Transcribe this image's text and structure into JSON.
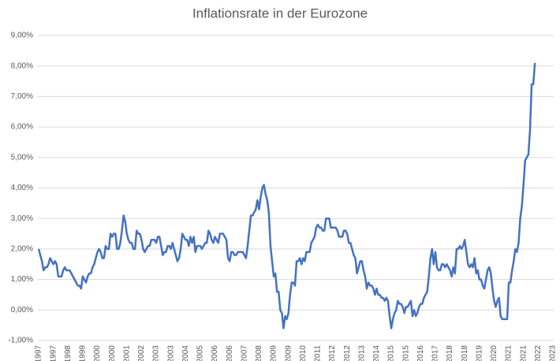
{
  "chart_data": {
    "type": "line",
    "title": "Inflationsrate in der Eurozone",
    "categories": [
      "01.1997",
      null,
      null,
      null,
      null,
      null,
      null,
      null,
      null,
      "10.1997",
      null,
      null,
      null,
      null,
      null,
      null,
      null,
      null,
      "07.1998",
      null,
      null,
      null,
      null,
      null,
      null,
      null,
      null,
      "04.1999",
      null,
      null,
      null,
      null,
      null,
      null,
      null,
      null,
      "01.2000",
      null,
      null,
      null,
      null,
      null,
      null,
      null,
      null,
      "10.2000",
      null,
      null,
      null,
      null,
      null,
      null,
      null,
      null,
      "07.2001",
      null,
      null,
      null,
      null,
      null,
      null,
      null,
      null,
      "04.2002",
      null,
      null,
      null,
      null,
      null,
      null,
      null,
      null,
      "01.2003",
      null,
      null,
      null,
      null,
      null,
      null,
      null,
      null,
      "10.2003",
      null,
      null,
      null,
      null,
      null,
      null,
      null,
      null,
      "07.2004",
      null,
      null,
      null,
      null,
      null,
      null,
      null,
      null,
      "04.2005",
      null,
      null,
      null,
      null,
      null,
      null,
      null,
      null,
      "01.2006",
      null,
      null,
      null,
      null,
      null,
      null,
      null,
      null,
      "10.2006",
      null,
      null,
      null,
      null,
      null,
      null,
      null,
      null,
      "07.2007",
      null,
      null,
      null,
      null,
      null,
      null,
      null,
      null,
      "04.2008",
      null,
      null,
      null,
      null,
      null,
      null,
      null,
      null,
      "01.2009",
      null,
      null,
      null,
      null,
      null,
      null,
      null,
      null,
      "10.2009",
      null,
      null,
      null,
      null,
      null,
      null,
      null,
      null,
      "07.2010",
      null,
      null,
      null,
      null,
      null,
      null,
      null,
      null,
      "04.2011",
      null,
      null,
      null,
      null,
      null,
      null,
      null,
      null,
      "01.2012",
      null,
      null,
      null,
      null,
      null,
      null,
      null,
      null,
      "10.2012",
      null,
      null,
      null,
      null,
      null,
      null,
      null,
      null,
      "07.2013",
      null,
      null,
      null,
      null,
      null,
      null,
      null,
      null,
      "04.2014",
      null,
      null,
      null,
      null,
      null,
      null,
      null,
      null,
      "01.2015",
      null,
      null,
      null,
      null,
      null,
      null,
      null,
      null,
      "10.2015",
      null,
      null,
      null,
      null,
      null,
      null,
      null,
      null,
      "07.2016",
      null,
      null,
      null,
      null,
      null,
      null,
      null,
      null,
      "04.2017",
      null,
      null,
      null,
      null,
      null,
      null,
      null,
      null,
      "01.2018",
      null,
      null,
      null,
      null,
      null,
      null,
      null,
      null,
      "10.2018",
      null,
      null,
      null,
      null,
      null,
      null,
      null,
      null,
      "07.2019",
      null,
      null,
      null,
      null,
      null,
      null,
      null,
      null,
      "04.2020",
      null,
      null,
      null,
      null,
      null,
      null,
      null,
      null,
      "01.2021",
      null,
      null,
      null,
      null,
      null,
      null,
      null,
      null,
      "10.2021",
      null,
      null,
      null,
      null,
      null,
      null,
      null,
      null,
      "07.2022",
      null,
      null,
      null,
      null,
      null,
      null,
      null,
      null,
      "04.2023"
    ],
    "series": [
      {
        "color": "#4472c4",
        "values": [
          2.0,
          1.8,
          1.6,
          1.3,
          1.4,
          1.4,
          1.5,
          1.7,
          1.6,
          1.5,
          1.6,
          1.5,
          1.1,
          1.1,
          1.1,
          1.3,
          1.4,
          1.3,
          1.3,
          1.3,
          1.2,
          1.1,
          1.0,
          0.9,
          0.8,
          0.8,
          0.7,
          1.1,
          1.0,
          0.9,
          1.1,
          1.2,
          1.2,
          1.4,
          1.5,
          1.7,
          1.9,
          2.0,
          1.9,
          1.7,
          1.7,
          2.1,
          2.0,
          2.0,
          2.5,
          2.4,
          2.5,
          2.5,
          2.0,
          2.0,
          2.2,
          2.6,
          3.1,
          2.9,
          2.5,
          2.3,
          2.2,
          2.2,
          2.0,
          2.0,
          2.6,
          2.5,
          2.5,
          2.3,
          2.0,
          1.9,
          2.0,
          2.1,
          2.1,
          2.3,
          2.3,
          2.3,
          2.2,
          2.4,
          2.4,
          2.1,
          1.8,
          1.9,
          1.9,
          2.1,
          2.1,
          2.0,
          2.2,
          2.0,
          1.8,
          1.6,
          1.7,
          2.0,
          2.5,
          2.4,
          2.3,
          2.3,
          2.1,
          2.4,
          2.2,
          2.4,
          1.9,
          2.1,
          2.1,
          2.1,
          2.0,
          2.1,
          2.2,
          2.2,
          2.6,
          2.5,
          2.3,
          2.2,
          2.4,
          2.3,
          2.2,
          2.5,
          2.5,
          2.5,
          2.4,
          2.3,
          1.7,
          1.6,
          1.9,
          1.9,
          1.8,
          1.8,
          1.9,
          1.9,
          1.9,
          1.9,
          1.8,
          1.7,
          2.1,
          2.6,
          3.1,
          3.1,
          3.2,
          3.3,
          3.6,
          3.3,
          3.7,
          4.0,
          4.1,
          3.8,
          3.6,
          3.2,
          2.1,
          1.6,
          1.1,
          1.2,
          0.6,
          0.6,
          0.0,
          -0.1,
          -0.6,
          -0.2,
          -0.3,
          -0.1,
          0.5,
          0.9,
          0.9,
          0.8,
          1.6,
          1.6,
          1.7,
          1.5,
          1.7,
          1.6,
          1.9,
          1.9,
          1.9,
          2.2,
          2.3,
          2.4,
          2.7,
          2.8,
          2.7,
          2.7,
          2.6,
          2.6,
          3.0,
          3.0,
          3.0,
          2.7,
          2.7,
          2.7,
          2.7,
          2.6,
          2.4,
          2.4,
          2.4,
          2.6,
          2.6,
          2.5,
          2.2,
          2.2,
          2.0,
          1.8,
          1.7,
          1.2,
          1.4,
          1.6,
          1.6,
          1.3,
          1.1,
          0.7,
          0.9,
          0.8,
          0.8,
          0.7,
          0.5,
          0.7,
          0.5,
          0.5,
          0.4,
          0.4,
          0.3,
          0.4,
          0.3,
          -0.2,
          -0.6,
          -0.3,
          -0.1,
          0.0,
          0.3,
          0.2,
          0.2,
          0.1,
          -0.1,
          0.1,
          0.1,
          0.2,
          0.3,
          -0.2,
          0.0,
          -0.2,
          -0.1,
          0.1,
          0.2,
          0.2,
          0.4,
          0.5,
          0.6,
          1.1,
          1.7,
          2.0,
          1.5,
          1.9,
          1.4,
          1.3,
          1.3,
          1.5,
          1.5,
          1.4,
          1.5,
          1.4,
          1.3,
          1.1,
          1.4,
          1.2,
          2.0,
          2.0,
          2.1,
          2.0,
          2.1,
          2.3,
          1.9,
          1.5,
          1.4,
          1.5,
          1.4,
          1.7,
          1.2,
          1.3,
          1.0,
          1.0,
          0.8,
          0.7,
          1.0,
          1.3,
          1.4,
          1.2,
          0.7,
          0.3,
          0.1,
          0.3,
          0.4,
          -0.2,
          -0.3,
          -0.3,
          -0.3,
          -0.3,
          0.9,
          0.9,
          1.3,
          1.6,
          2.0,
          1.9,
          2.2,
          3.0,
          3.4,
          4.1,
          4.9,
          5.0,
          5.1,
          5.9,
          7.4,
          7.4,
          8.1,
          null,
          null,
          null,
          null,
          null,
          null,
          null,
          null,
          null,
          null,
          null
        ]
      }
    ],
    "ylim": [
      -1,
      9
    ],
    "yticks": [
      {
        "value": -1,
        "label": "-1,00%"
      },
      {
        "value": 0,
        "label": "0,00%"
      },
      {
        "value": 1,
        "label": "1,00%"
      },
      {
        "value": 2,
        "label": "2,00%"
      },
      {
        "value": 3,
        "label": "3,00%"
      },
      {
        "value": 4,
        "label": "4,00%"
      },
      {
        "value": 5,
        "label": "5,00%"
      },
      {
        "value": 6,
        "label": "6,00%"
      },
      {
        "value": 7,
        "label": "7,00%"
      },
      {
        "value": 8,
        "label": "8,00%"
      },
      {
        "value": 9,
        "label": "9,00%"
      }
    ],
    "grid": true
  }
}
